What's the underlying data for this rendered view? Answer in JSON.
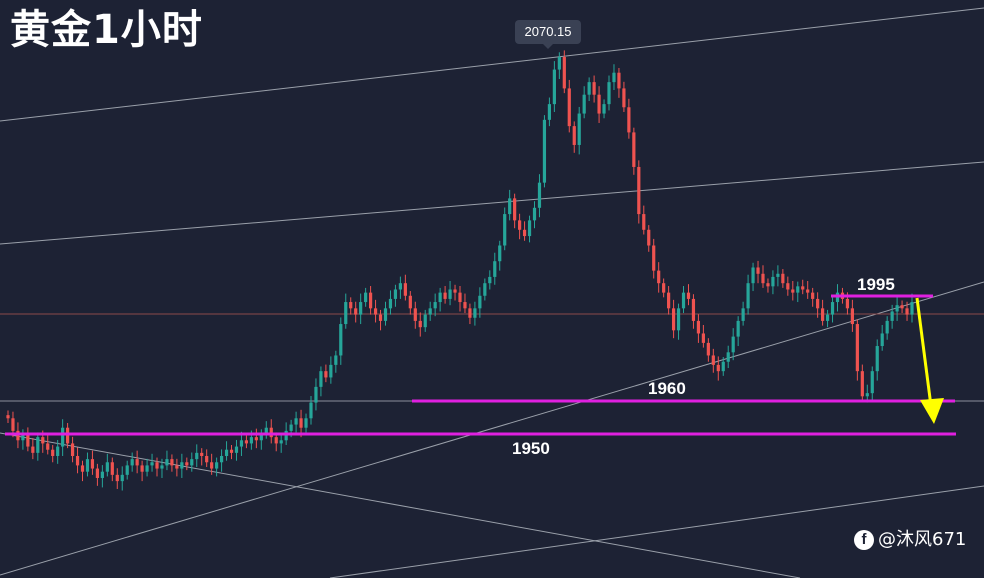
{
  "title": "黄金1小时",
  "price_tag": "2070.15",
  "watermark": {
    "icon": "weibo-icon",
    "text": "@沐风671"
  },
  "colors": {
    "background": "#1d2234",
    "up": "#26a69a",
    "down": "#ef5350",
    "level": "#e020e0",
    "arrow": "#ffff00",
    "trend": "#9aa0aa"
  },
  "chart_data": {
    "type": "candlestick",
    "title": "黄金1小时",
    "xlabel": "",
    "ylabel": "",
    "ylim": [
      1935,
      2080
    ],
    "grid": false,
    "annotations": [
      {
        "label": "2070.15",
        "kind": "price-tag",
        "value": 2070.15
      },
      {
        "label": "1995",
        "kind": "resistance",
        "value": 1995
      },
      {
        "label": "1960",
        "kind": "support",
        "value": 1960
      },
      {
        "label": "1950",
        "kind": "support",
        "value": 1950
      }
    ],
    "projection": {
      "direction": "down",
      "from": 1995,
      "to": 1950
    },
    "series": [
      {
        "values": [
          1955,
          1951,
          1948,
          1950,
          1946,
          1944,
          1949,
          1947,
          1945,
          1943,
          1946,
          1952,
          1947,
          1943,
          1940,
          1938,
          1942,
          1939,
          1936,
          1938,
          1941,
          1937,
          1935,
          1937,
          1940,
          1942,
          1940,
          1938,
          1940,
          1941,
          1939,
          1940,
          1942,
          1940,
          1939,
          1941,
          1940,
          1942,
          1944,
          1943,
          1941,
          1939,
          1941,
          1943,
          1945,
          1944,
          1946,
          1948,
          1947,
          1949,
          1948,
          1950,
          1952,
          1949,
          1947,
          1948,
          1951,
          1953,
          1955,
          1952,
          1955,
          1960,
          1965,
          1970,
          1968,
          1972,
          1975,
          1985,
          1992,
          1990,
          1988,
          1992,
          1995,
          1990,
          1988,
          1986,
          1990,
          1993,
          1996,
          1998,
          1994,
          1990,
          1986,
          1984,
          1988,
          1990,
          1992,
          1995,
          1993,
          1996,
          1995,
          1992,
          1990,
          1987,
          1990,
          1994,
          1998,
          2000,
          2005,
          2010,
          2020,
          2025,
          2018,
          2015,
          2013,
          2018,
          2022,
          2030,
          2050,
          2055,
          2066,
          2070,
          2060,
          2048,
          2042,
          2052,
          2058,
          2062,
          2058,
          2052,
          2055,
          2062,
          2065,
          2060,
          2054,
          2046,
          2035,
          2020,
          2015,
          2010,
          2002,
          1998,
          1995,
          1990,
          1983,
          1990,
          1995,
          1993,
          1986,
          1982,
          1979,
          1975,
          1972,
          1970,
          1973,
          1976,
          1981,
          1986,
          1990,
          1998,
          2003,
          2001,
          1998,
          1997,
          2000,
          2001,
          1998,
          1996,
          1995,
          1997,
          1996,
          1995,
          1993,
          1990,
          1986,
          1988,
          1992,
          1995,
          1993,
          1990,
          1985,
          1970,
          1962,
          1963,
          1970,
          1978,
          1982,
          1986,
          1989,
          1991,
          1990,
          1988,
          1992
        ]
      }
    ]
  }
}
